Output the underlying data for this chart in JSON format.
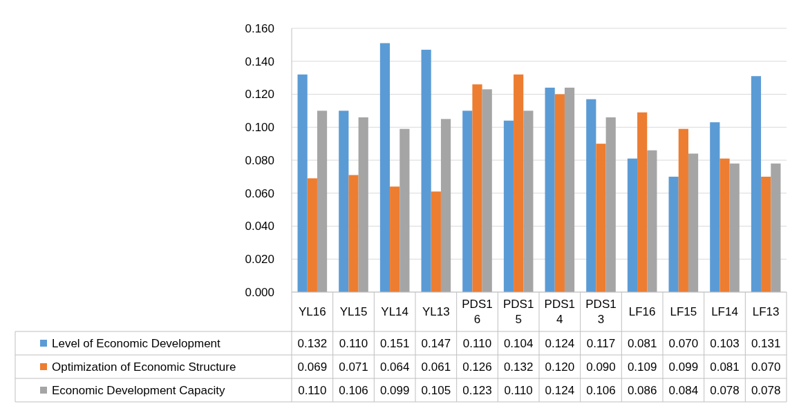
{
  "chart_data": {
    "type": "bar",
    "categories": [
      "YL16",
      "YL15",
      "YL14",
      "YL13",
      "PDS16",
      "PDS15",
      "PDS14",
      "PDS13",
      "LF16",
      "LF15",
      "LF14",
      "LF13"
    ],
    "series": [
      {
        "name": "Level of Economic Development",
        "color": "#5b9bd5",
        "values": [
          0.132,
          0.11,
          0.151,
          0.147,
          0.11,
          0.104,
          0.124,
          0.117,
          0.081,
          0.07,
          0.103,
          0.131
        ],
        "value_labels": [
          "0.132",
          "0.110",
          "0.151",
          "0.147",
          "0.110",
          "0.104",
          "0.124",
          "0.117",
          "0.081",
          "0.070",
          "0.103",
          "0.131"
        ]
      },
      {
        "name": "Optimization of Economic Structure",
        "color": "#ed7d31",
        "values": [
          0.069,
          0.071,
          0.064,
          0.061,
          0.126,
          0.132,
          0.12,
          0.09,
          0.109,
          0.099,
          0.081,
          0.07
        ],
        "value_labels": [
          "0.069",
          "0.071",
          "0.064",
          "0.061",
          "0.126",
          "0.132",
          "0.120",
          "0.090",
          "0.109",
          "0.099",
          "0.081",
          "0.070"
        ]
      },
      {
        "name": "Economic Development Capacity",
        "color": "#a5a5a5",
        "values": [
          0.11,
          0.106,
          0.099,
          0.105,
          0.123,
          0.11,
          0.124,
          0.106,
          0.086,
          0.084,
          0.078,
          0.078
        ],
        "value_labels": [
          "0.110",
          "0.106",
          "0.099",
          "0.105",
          "0.123",
          "0.110",
          "0.124",
          "0.106",
          "0.086",
          "0.084",
          "0.078",
          "0.078"
        ]
      }
    ],
    "ylim": [
      0,
      0.16
    ],
    "yticks": [
      {
        "value": 0,
        "label": "0.000"
      },
      {
        "value": 0.02,
        "label": "0.020"
      },
      {
        "value": 0.04,
        "label": "0.040"
      },
      {
        "value": 0.06,
        "label": "0.060"
      },
      {
        "value": 0.08,
        "label": "0.080"
      },
      {
        "value": 0.1,
        "label": "0.100"
      },
      {
        "value": 0.12,
        "label": "0.120"
      },
      {
        "value": 0.14,
        "label": "0.140"
      },
      {
        "value": 0.16,
        "label": "0.160"
      }
    ],
    "grid": "y",
    "legend": "bottom"
  }
}
